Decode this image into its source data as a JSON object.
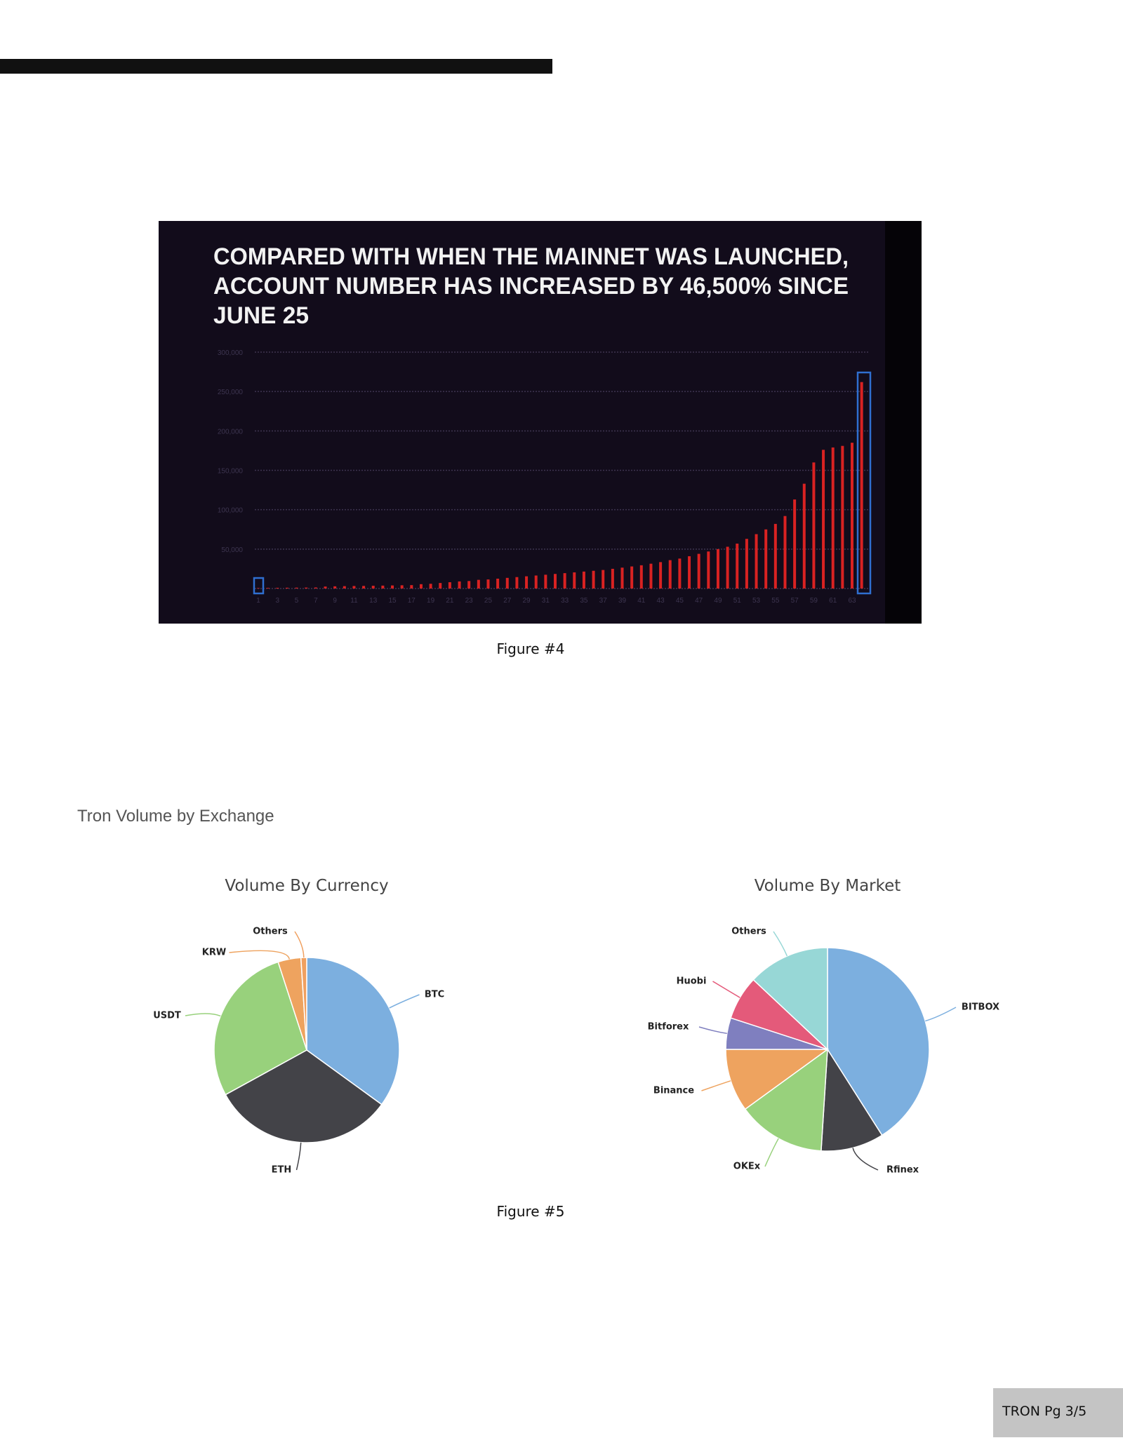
{
  "figure4": {
    "caption": "Figure #4",
    "title_lines": [
      "COMPARED WITH WHEN THE MAINNET WAS LAUNCHED,",
      "ACCOUNT NUMBER HAS INCREASED BY 46,500% SINCE",
      "JUNE 25"
    ]
  },
  "section_title": "Tron Volume by Exchange",
  "figure5": {
    "caption": "Figure #5"
  },
  "footer": {
    "page_label": "TRON Pg 3/5"
  },
  "colors": {
    "bar": "#d92222",
    "highlight": "#2f6fd0",
    "chart_bg": "#120c1b"
  },
  "chart_data": [
    {
      "type": "bar",
      "title": "COMPARED WITH WHEN THE MAINNET WAS LAUNCHED, ACCOUNT NUMBER HAS INCREASED BY 46,500% SINCE JUNE 25",
      "xlabel": "",
      "ylabel": "",
      "ylim": [
        0,
        300000
      ],
      "yticks": [
        "",
        "50,000",
        "100,000",
        "150,000",
        "200,000",
        "250,000",
        "300,000"
      ],
      "xtick_labels": [
        "1",
        "3",
        "5",
        "7",
        "9",
        "11",
        "13",
        "15",
        "17",
        "19",
        "21",
        "23",
        "25",
        "27",
        "29",
        "31",
        "33",
        "35",
        "37",
        "39",
        "41",
        "43",
        "45",
        "47",
        "49",
        "51",
        "53",
        "55",
        "57",
        "59",
        "61",
        "63"
      ],
      "x": [
        1,
        2,
        3,
        4,
        5,
        6,
        7,
        8,
        9,
        10,
        11,
        12,
        13,
        14,
        15,
        16,
        17,
        18,
        19,
        20,
        21,
        22,
        23,
        24,
        25,
        26,
        27,
        28,
        29,
        30,
        31,
        32,
        33,
        34,
        35,
        36,
        37,
        38,
        39,
        40,
        41,
        42,
        43,
        44,
        45,
        46,
        47,
        48,
        49,
        50,
        51,
        52,
        53,
        54,
        55,
        56,
        57,
        58,
        59,
        60,
        61,
        62,
        63,
        64
      ],
      "values": [
        560,
        800,
        900,
        1000,
        1100,
        1200,
        1300,
        2500,
        2800,
        3000,
        3200,
        3300,
        3500,
        3700,
        3900,
        4100,
        4300,
        5500,
        6000,
        7000,
        8000,
        9000,
        9500,
        11000,
        11500,
        12500,
        13500,
        14500,
        15500,
        16500,
        17500,
        18500,
        19500,
        20500,
        21500,
        22500,
        23500,
        25000,
        26500,
        28000,
        29500,
        31500,
        33500,
        36000,
        38000,
        41000,
        44000,
        47000,
        50000,
        53000,
        57000,
        63000,
        69000,
        75000,
        82000,
        92000,
        113000,
        133000,
        160000,
        176000,
        179000,
        181000,
        185000,
        262000
      ],
      "highlighted": [
        1,
        64
      ],
      "grid": true
    },
    {
      "type": "pie",
      "title": "Volume By Currency",
      "labels": [
        "BTC",
        "ETH",
        "USDT",
        "KRW",
        "Others"
      ],
      "values": [
        35,
        32,
        28,
        4,
        1
      ],
      "colors": [
        "#7cafdf",
        "#434348",
        "#98d17c",
        "#eea35f",
        "#f0a060"
      ]
    },
    {
      "type": "pie",
      "title": "Volume By Market",
      "labels": [
        "BITBOX",
        "Rfinex",
        "OKEx",
        "Binance",
        "Bitforex",
        "Huobi",
        "Others"
      ],
      "values": [
        41,
        10,
        14,
        10,
        5,
        7,
        13
      ],
      "colors": [
        "#7cafdf",
        "#434348",
        "#98d17c",
        "#eea35f",
        "#7f7fbf",
        "#e45a7a",
        "#97d7d6"
      ]
    }
  ]
}
